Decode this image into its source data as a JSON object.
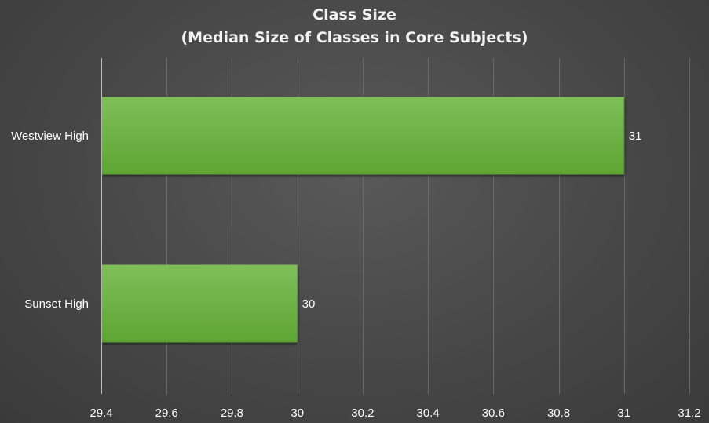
{
  "chart_data": {
    "type": "bar",
    "orientation": "horizontal",
    "title": "Class Size",
    "subtitle": "(Median Size of Classes in Core Subjects)",
    "categories": [
      "Westview High",
      "Sunset High"
    ],
    "values": [
      31,
      30
    ],
    "data_labels": [
      "31",
      "30"
    ],
    "xlim": [
      29.4,
      31.2
    ],
    "x_ticks": [
      29.4,
      29.6,
      29.8,
      30,
      30.2,
      30.4,
      30.6,
      30.8,
      31,
      31.2
    ],
    "x_tick_labels": [
      "29.4",
      "29.6",
      "29.8",
      "30",
      "30.2",
      "30.4",
      "30.6",
      "30.8",
      "31",
      "31.2"
    ],
    "grid": "vertical",
    "legend": "none",
    "bar_color": "#6aae3e",
    "background_color": "#4a4a4a"
  }
}
